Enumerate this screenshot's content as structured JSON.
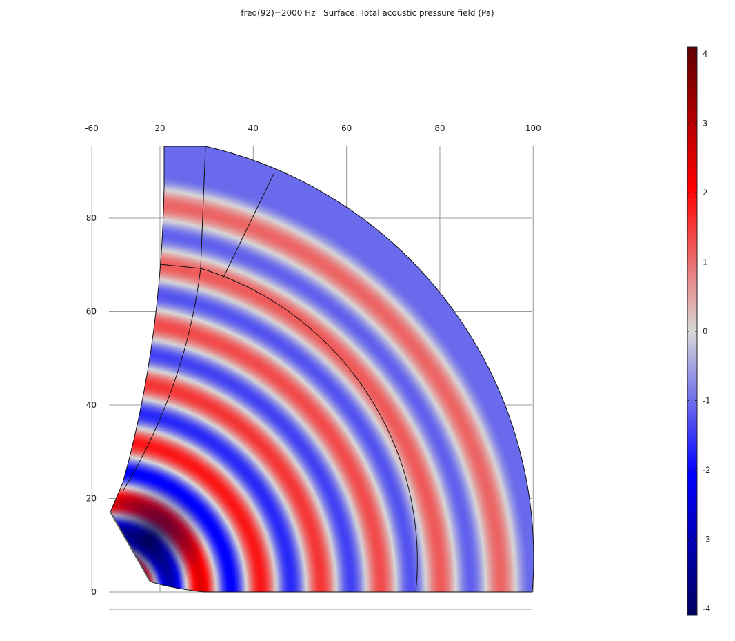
{
  "title": "freq(92)=2000 Hz   Surface: Total acoustic pressure field (Pa)",
  "chart_data": {
    "type": "heatmap",
    "title": "freq(92)=2000 Hz   Surface: Total acoustic pressure field (Pa)",
    "quantity": "Total acoustic pressure field",
    "unit": "Pa",
    "frequency_label": "freq(92)=2000 Hz",
    "x_ticks": [
      "-60",
      "20",
      "40",
      "60",
      "80",
      "100"
    ],
    "x_tick_values": [
      -60,
      20,
      40,
      60,
      80,
      100
    ],
    "y_ticks": [
      "80",
      "60",
      "40",
      "20",
      "0"
    ],
    "y_tick_values": [
      80,
      60,
      40,
      20,
      0
    ],
    "colorbar": {
      "range": [
        -4.1,
        4.1
      ],
      "ticks": [
        "4",
        "3",
        "2",
        "1",
        "0",
        "-1",
        "-2",
        "-3",
        "-4"
      ],
      "tick_values": [
        4,
        3,
        2,
        1,
        0,
        -1,
        -2,
        -3,
        -4
      ],
      "colormap": "wave",
      "color_stops": [
        "#000060",
        "#0000ff",
        "#d8d8d8",
        "#ff0000",
        "#600000"
      ]
    },
    "grid": true
  }
}
